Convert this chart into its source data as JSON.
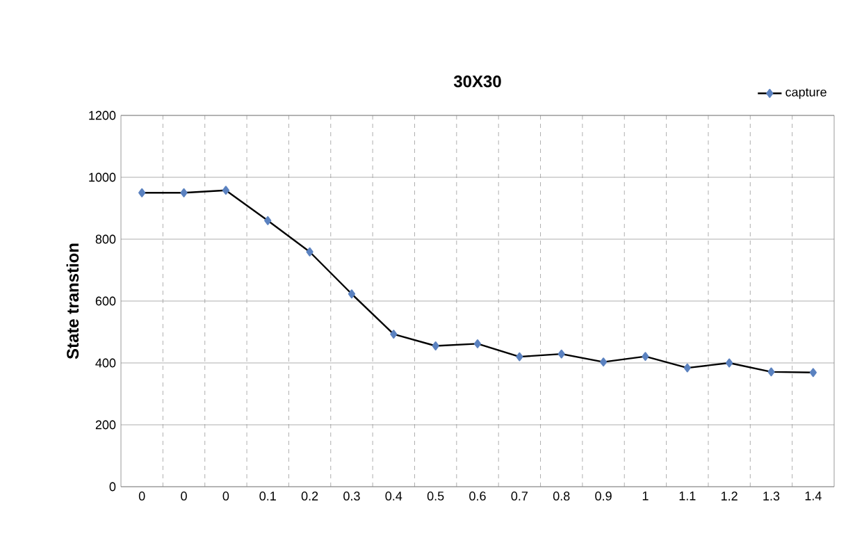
{
  "chart_data": {
    "type": "line",
    "title": "30X30",
    "ylabel": "State transtion",
    "categories": [
      "0",
      "0",
      "0",
      "0.1",
      "0.2",
      "0.3",
      "0.4",
      "0.5",
      "0.6",
      "0.7",
      "0.8",
      "0.9",
      "1",
      "1.1",
      "1.2",
      "1.3",
      "1.4"
    ],
    "series": [
      {
        "name": "capture",
        "color": "#000000",
        "values": [
          950,
          950,
          958,
          860,
          759,
          623,
          493,
          455,
          462,
          420,
          429,
          403,
          421,
          384,
          400,
          371,
          369
        ]
      }
    ],
    "ylim": [
      0,
      1200
    ],
    "yticks": [
      0,
      200,
      400,
      600,
      800,
      1000,
      1200
    ],
    "grid": true,
    "legend": "top right",
    "marker": "diamond",
    "line_style": "solid"
  }
}
